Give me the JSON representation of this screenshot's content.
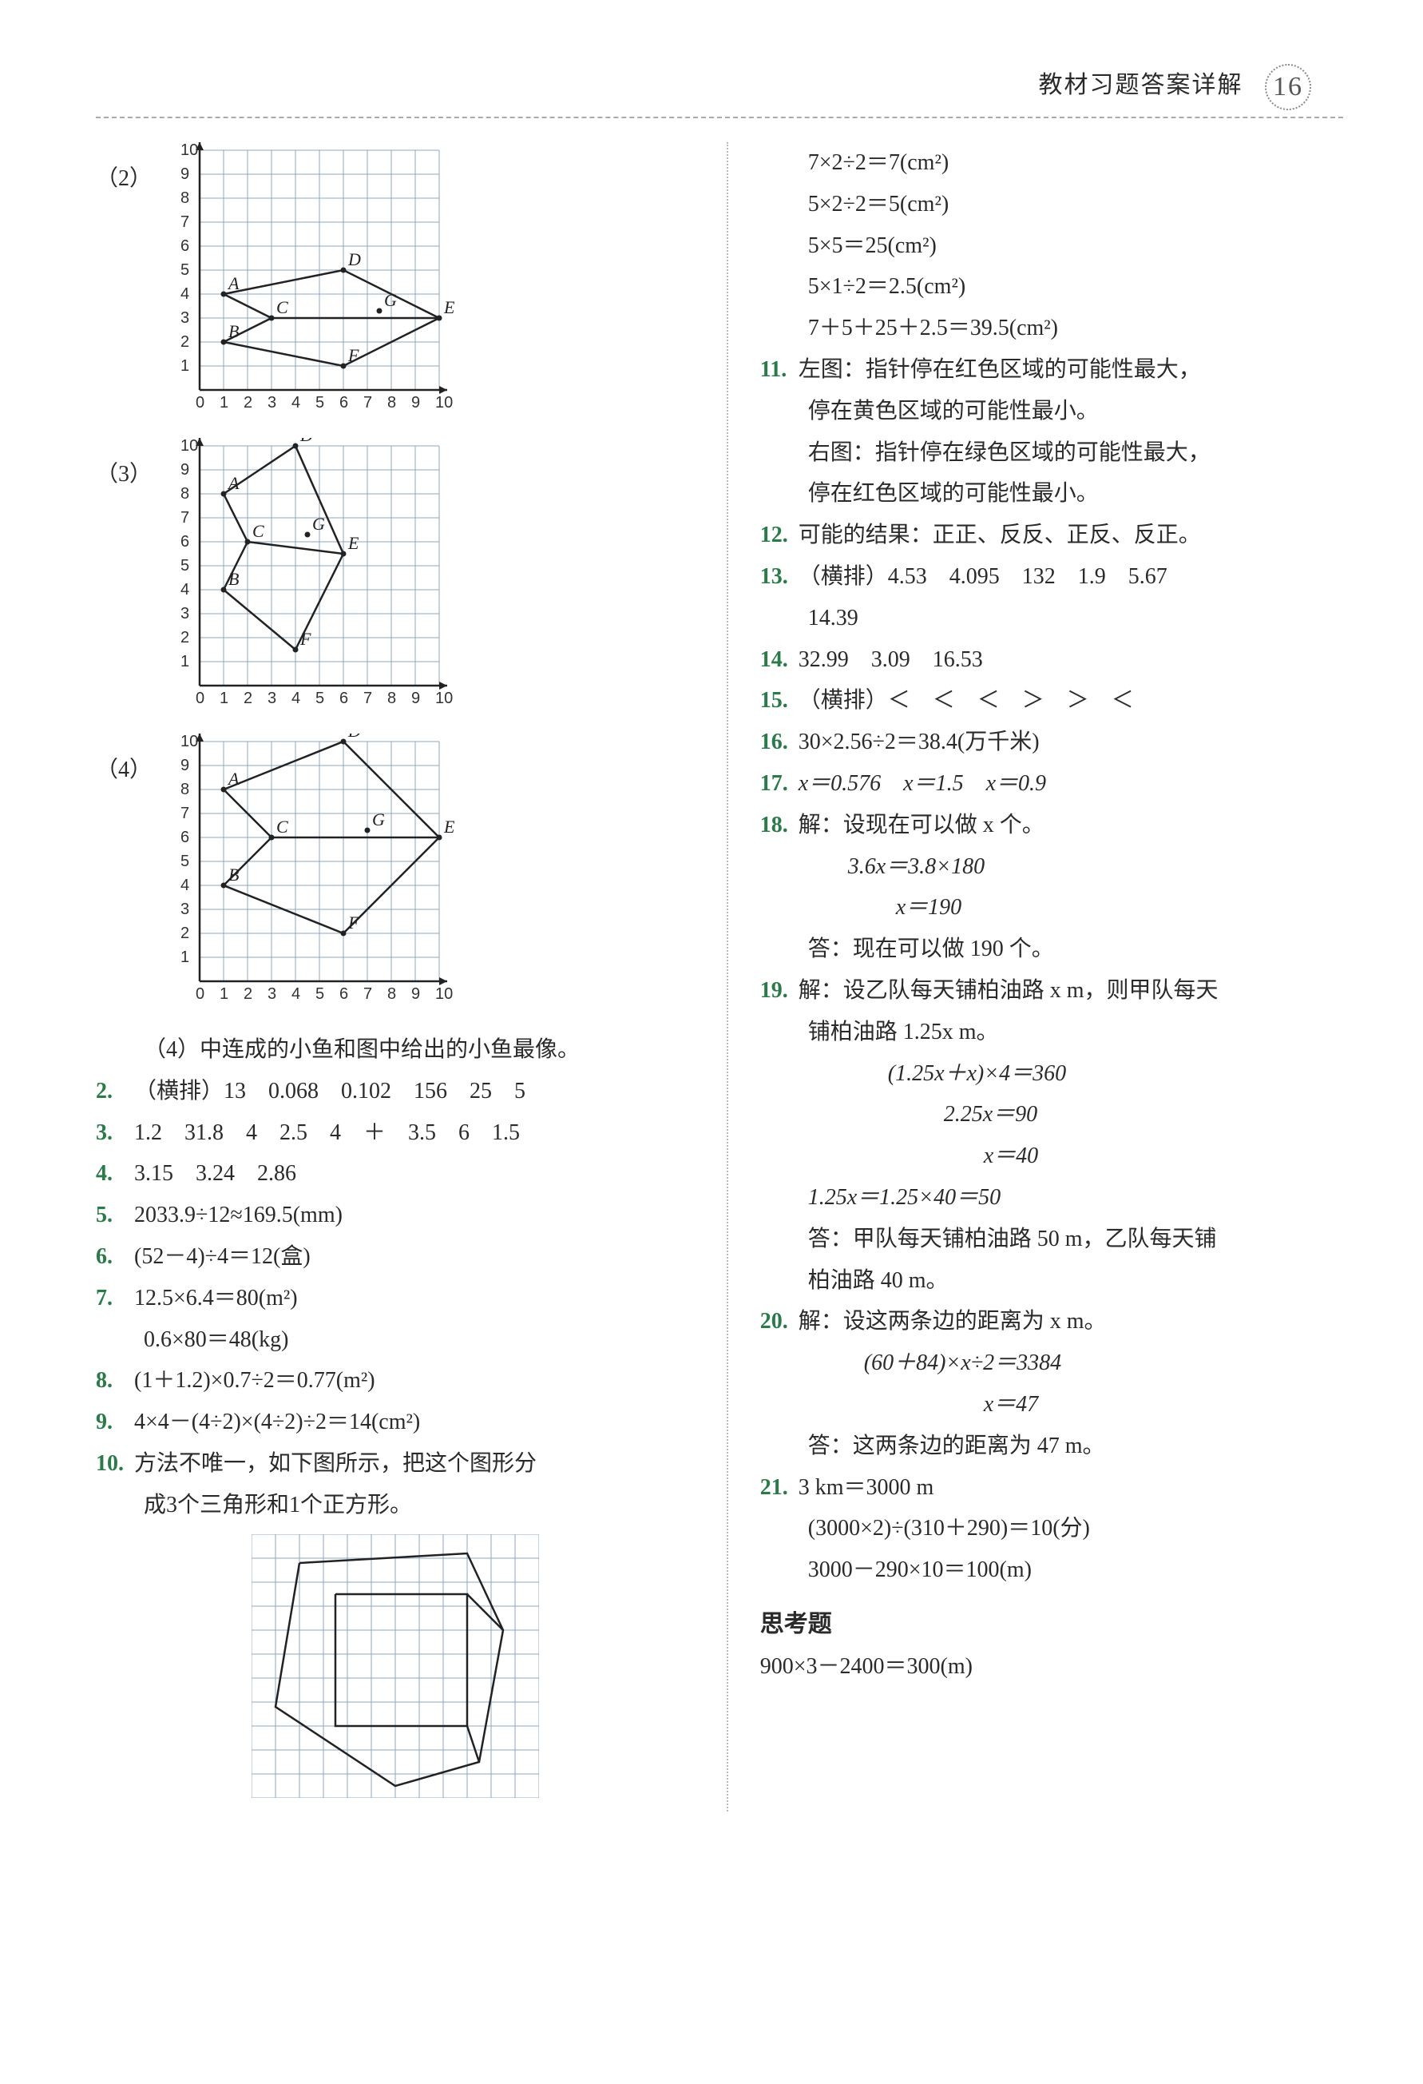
{
  "header": {
    "title": "教材习题答案详解",
    "page": "16"
  },
  "leftCol": {
    "charts": [
      {
        "label": "（2）",
        "xmax": 10,
        "ymax": 10,
        "cell": 30,
        "points": {
          "A": [
            1,
            4
          ],
          "B": [
            1,
            2
          ],
          "C": [
            3,
            3
          ],
          "D": [
            6,
            5
          ],
          "E": [
            10,
            3
          ],
          "F": [
            6,
            1
          ],
          "G": [
            7.5,
            3.3
          ]
        },
        "poly": [
          [
            1,
            4
          ],
          [
            6,
            5
          ],
          [
            10,
            3
          ],
          [
            6,
            1
          ],
          [
            1,
            2
          ],
          [
            3,
            3
          ],
          [
            1,
            4
          ]
        ],
        "extra": [
          [
            [
              3,
              3
            ],
            [
              10,
              3
            ]
          ]
        ]
      },
      {
        "label": "（3）",
        "xmax": 10,
        "ymax": 10,
        "cell": 30,
        "points": {
          "A": [
            1,
            8
          ],
          "B": [
            1,
            4
          ],
          "C": [
            2,
            6
          ],
          "D": [
            4,
            10
          ],
          "E": [
            6,
            5.5
          ],
          "F": [
            4,
            1.5
          ],
          "G": [
            4.5,
            6.3
          ]
        },
        "poly": [
          [
            1,
            8
          ],
          [
            4,
            10
          ],
          [
            6,
            5.5
          ],
          [
            4,
            1.5
          ],
          [
            1,
            4
          ],
          [
            2,
            6
          ],
          [
            1,
            8
          ]
        ],
        "extra": [
          [
            [
              2,
              6
            ],
            [
              6,
              5.5
            ]
          ]
        ]
      },
      {
        "label": "（4）",
        "xmax": 10,
        "ymax": 10,
        "cell": 30,
        "points": {
          "A": [
            1,
            8
          ],
          "B": [
            1,
            4
          ],
          "C": [
            3,
            6
          ],
          "D": [
            6,
            10
          ],
          "E": [
            10,
            6
          ],
          "F": [
            6,
            2
          ],
          "G": [
            7,
            6.3
          ]
        },
        "poly": [
          [
            1,
            8
          ],
          [
            6,
            10
          ],
          [
            10,
            6
          ],
          [
            6,
            2
          ],
          [
            1,
            4
          ],
          [
            3,
            6
          ],
          [
            1,
            8
          ]
        ],
        "extra": [
          [
            [
              3,
              6
            ],
            [
              10,
              6
            ]
          ]
        ]
      }
    ],
    "afterCharts": "（4）中连成的小鱼和图中给出的小鱼最像。",
    "q2": {
      "num": "2.",
      "text": "（横排）13　0.068　0.102　156　25　5"
    },
    "q3": {
      "num": "3.",
      "text": "1.2　31.8　4　2.5　4　＋　3.5　6　1.5"
    },
    "q4": {
      "num": "4.",
      "text": "3.15　3.24　2.86"
    },
    "q5": {
      "num": "5.",
      "text": "2033.9÷12≈169.5(mm)"
    },
    "q6": {
      "num": "6.",
      "text": "(52－4)÷4＝12(盒)"
    },
    "q7": {
      "num": "7.",
      "l1": "12.5×6.4＝80(m²)",
      "l2": "0.6×80＝48(kg)"
    },
    "q8": {
      "num": "8.",
      "text": "(1＋1.2)×0.7÷2＝0.77(m²)"
    },
    "q9": {
      "num": "9.",
      "text": "4×4－(4÷2)×(4÷2)÷2＝14(cm²)"
    },
    "q10": {
      "num": "10.",
      "l1": "方法不唯一，如下图所示，把这个图形分",
      "l2": "成3个三角形和1个正方形。"
    },
    "q10grid": {
      "cols": 12,
      "rows": 11,
      "cell": 30,
      "outer": [
        [
          2,
          1.2
        ],
        [
          9,
          0.8
        ],
        [
          10.5,
          4
        ],
        [
          9.5,
          9.5
        ],
        [
          6,
          10.5
        ],
        [
          1,
          7.2
        ],
        [
          2,
          1.2
        ]
      ],
      "inner": [
        [
          3.5,
          2.5
        ],
        [
          9,
          2.5
        ],
        [
          9,
          8
        ],
        [
          3.5,
          8
        ],
        [
          3.5,
          2.5
        ]
      ],
      "diag": [
        [
          [
            9,
            2.5
          ],
          [
            10.5,
            4
          ]
        ],
        [
          [
            9,
            8
          ],
          [
            9.5,
            9.5
          ]
        ]
      ]
    }
  },
  "rightCol": {
    "top": [
      "7×2÷2＝7(cm²)",
      "5×2÷2＝5(cm²)",
      "5×5＝25(cm²)",
      "5×1÷2＝2.5(cm²)",
      "7＋5＋25＋2.5＝39.5(cm²)"
    ],
    "q11": {
      "num": "11.",
      "l1": "左图：指针停在红色区域的可能性最大，",
      "l2": "停在黄色区域的可能性最小。",
      "l3": "右图：指针停在绿色区域的可能性最大，",
      "l4": "停在红色区域的可能性最小。"
    },
    "q12": {
      "num": "12.",
      "text": "可能的结果：正正、反反、正反、反正。"
    },
    "q13": {
      "num": "13.",
      "l1": "（横排）4.53　4.095　132　1.9　5.67",
      "l2": "14.39"
    },
    "q14": {
      "num": "14.",
      "text": "32.99　3.09　16.53"
    },
    "q15": {
      "num": "15.",
      "text": "（横排）＜　＜　＜　＞　＞　＜"
    },
    "q16": {
      "num": "16.",
      "text": "30×2.56÷2＝38.4(万千米)"
    },
    "q17": {
      "num": "17.",
      "text": "x＝0.576　x＝1.5　x＝0.9"
    },
    "q18": {
      "num": "18.",
      "l1": "解：设现在可以做 x 个。",
      "l2": "3.6x＝3.8×180",
      "l3": "x＝190",
      "l4": "答：现在可以做 190 个。"
    },
    "q19": {
      "num": "19.",
      "l1": "解：设乙队每天铺柏油路 x m，则甲队每天",
      "l2": "铺柏油路 1.25x m。",
      "l3": "(1.25x＋x)×4＝360",
      "l4": "2.25x＝90",
      "l5": "x＝40",
      "l6": "1.25x＝1.25×40＝50",
      "l7": "答：甲队每天铺柏油路 50 m，乙队每天铺",
      "l8": "柏油路 40 m。"
    },
    "q20": {
      "num": "20.",
      "l1": "解：设这两条边的距离为 x m。",
      "l2": "(60＋84)×x÷2＝3384",
      "l3": "x＝47",
      "l4": "答：这两条边的距离为 47 m。"
    },
    "q21": {
      "num": "21.",
      "l1": "3 km＝3000 m",
      "l2": "(3000×2)÷(310＋290)＝10(分)",
      "l3": "3000－290×10＝100(m)"
    },
    "think": {
      "title": "思考题",
      "text": "900×3－2400＝300(m)"
    }
  },
  "style": {
    "grid_color": "#8fa8c0",
    "qnum_color": "#2a7a4a",
    "font_main": "SimSun",
    "font_size_body": 28,
    "line_height": 1.85,
    "page_bg": "#ffffff"
  }
}
